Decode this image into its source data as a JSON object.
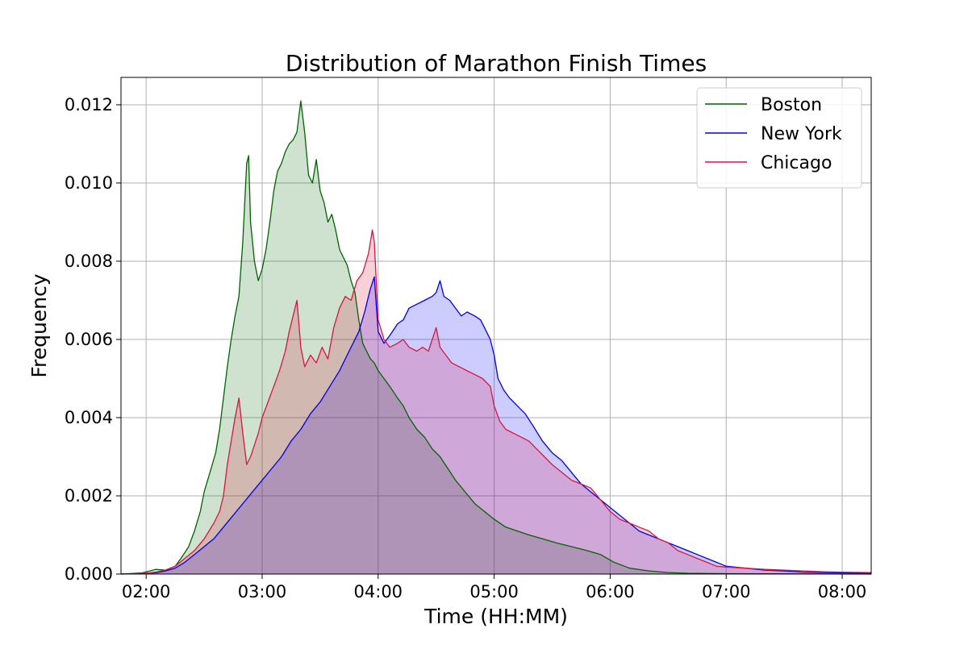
{
  "chart_data": {
    "type": "area",
    "title": "Distribution of Marathon Finish Times",
    "xlabel": "Time (HH:MM)",
    "ylabel": "Frequency",
    "x_unit": "minutes",
    "xlim": [
      107,
      495
    ],
    "ylim": [
      0,
      0.0127
    ],
    "x_ticks": [
      {
        "value": 120,
        "label": "02:00"
      },
      {
        "value": 180,
        "label": "03:00"
      },
      {
        "value": 240,
        "label": "04:00"
      },
      {
        "value": 300,
        "label": "05:00"
      },
      {
        "value": 360,
        "label": "06:00"
      },
      {
        "value": 420,
        "label": "07:00"
      },
      {
        "value": 480,
        "label": "08:00"
      }
    ],
    "y_ticks": [
      {
        "value": 0,
        "label": "0.000"
      },
      {
        "value": 0.002,
        "label": "0.002"
      },
      {
        "value": 0.004,
        "label": "0.004"
      },
      {
        "value": 0.006,
        "label": "0.006"
      },
      {
        "value": 0.008,
        "label": "0.008"
      },
      {
        "value": 0.01,
        "label": "0.010"
      },
      {
        "value": 0.012,
        "label": "0.012"
      }
    ],
    "grid": true,
    "legend_position": "top-right",
    "series": [
      {
        "name": "Boston",
        "color": "#006400",
        "fill": "#006400",
        "fill_opacity": 0.19,
        "points": [
          [
            107,
            0
          ],
          [
            118,
            3e-05
          ],
          [
            125,
            0.00012
          ],
          [
            130,
            0.0001
          ],
          [
            135,
            0.0002
          ],
          [
            138,
            0.0004
          ],
          [
            142,
            0.0007
          ],
          [
            145,
            0.0011
          ],
          [
            148,
            0.0016
          ],
          [
            150,
            0.0021
          ],
          [
            153,
            0.0026
          ],
          [
            156,
            0.0031
          ],
          [
            158,
            0.0037
          ],
          [
            160,
            0.0045
          ],
          [
            162,
            0.0053
          ],
          [
            164,
            0.006
          ],
          [
            166,
            0.0066
          ],
          [
            168,
            0.0071
          ],
          [
            170,
            0.0085
          ],
          [
            172,
            0.0105
          ],
          [
            173,
            0.0107
          ],
          [
            174,
            0.009
          ],
          [
            176,
            0.008
          ],
          [
            178,
            0.0075
          ],
          [
            180,
            0.0078
          ],
          [
            182,
            0.0083
          ],
          [
            184,
            0.009
          ],
          [
            186,
            0.0098
          ],
          [
            188,
            0.0103
          ],
          [
            190,
            0.0105
          ],
          [
            192,
            0.0108
          ],
          [
            194,
            0.011
          ],
          [
            196,
            0.0111
          ],
          [
            198,
            0.0113
          ],
          [
            200,
            0.0121
          ],
          [
            202,
            0.0113
          ],
          [
            204,
            0.0102
          ],
          [
            206,
            0.01
          ],
          [
            208,
            0.0106
          ],
          [
            210,
            0.0098
          ],
          [
            212,
            0.0095
          ],
          [
            214,
            0.009
          ],
          [
            216,
            0.0092
          ],
          [
            218,
            0.0088
          ],
          [
            220,
            0.0083
          ],
          [
            222,
            0.0081
          ],
          [
            224,
            0.0079
          ],
          [
            226,
            0.0075
          ],
          [
            228,
            0.0072
          ],
          [
            230,
            0.0065
          ],
          [
            232,
            0.0059
          ],
          [
            234,
            0.0057
          ],
          [
            236,
            0.0055
          ],
          [
            238,
            0.0054
          ],
          [
            240,
            0.0052
          ],
          [
            243,
            0.005
          ],
          [
            246,
            0.0048
          ],
          [
            250,
            0.0045
          ],
          [
            253,
            0.0043
          ],
          [
            256,
            0.004
          ],
          [
            260,
            0.0037
          ],
          [
            264,
            0.0035
          ],
          [
            268,
            0.0032
          ],
          [
            272,
            0.003
          ],
          [
            276,
            0.0027
          ],
          [
            280,
            0.0024
          ],
          [
            285,
            0.0021
          ],
          [
            290,
            0.0018
          ],
          [
            295,
            0.0016
          ],
          [
            300,
            0.0014
          ],
          [
            306,
            0.0012
          ],
          [
            312,
            0.0011
          ],
          [
            318,
            0.001
          ],
          [
            325,
            0.0009
          ],
          [
            332,
            0.0008
          ],
          [
            340,
            0.0007
          ],
          [
            348,
            0.0006
          ],
          [
            355,
            0.0005
          ],
          [
            362,
            0.0003
          ],
          [
            370,
            0.00015
          ],
          [
            380,
            8e-05
          ],
          [
            390,
            4e-05
          ],
          [
            400,
            2e-05
          ],
          [
            420,
            1e-05
          ],
          [
            495,
            0
          ]
        ]
      },
      {
        "name": "New York",
        "color": "#0000ee",
        "fill": "#0000ff",
        "fill_opacity": 0.2,
        "points": [
          [
            107,
            0
          ],
          [
            125,
            3e-05
          ],
          [
            130,
            8e-05
          ],
          [
            135,
            0.00015
          ],
          [
            140,
            0.0003
          ],
          [
            145,
            0.0005
          ],
          [
            150,
            0.0007
          ],
          [
            155,
            0.0009
          ],
          [
            160,
            0.0012
          ],
          [
            165,
            0.0015
          ],
          [
            170,
            0.0018
          ],
          [
            175,
            0.0021
          ],
          [
            180,
            0.0024
          ],
          [
            185,
            0.0027
          ],
          [
            190,
            0.003
          ],
          [
            195,
            0.0034
          ],
          [
            200,
            0.0037
          ],
          [
            205,
            0.0041
          ],
          [
            210,
            0.0044
          ],
          [
            215,
            0.0048
          ],
          [
            220,
            0.0052
          ],
          [
            225,
            0.0057
          ],
          [
            230,
            0.0062
          ],
          [
            233,
            0.0067
          ],
          [
            236,
            0.0073
          ],
          [
            238,
            0.0076
          ],
          [
            240,
            0.0062
          ],
          [
            243,
            0.0059
          ],
          [
            246,
            0.0061
          ],
          [
            250,
            0.0064
          ],
          [
            253,
            0.0065
          ],
          [
            256,
            0.0068
          ],
          [
            260,
            0.0069
          ],
          [
            264,
            0.007
          ],
          [
            268,
            0.0071
          ],
          [
            270,
            0.0072
          ],
          [
            272,
            0.0075
          ],
          [
            274,
            0.0071
          ],
          [
            277,
            0.007
          ],
          [
            280,
            0.0068
          ],
          [
            283,
            0.0066
          ],
          [
            286,
            0.0067
          ],
          [
            290,
            0.0066
          ],
          [
            293,
            0.0065
          ],
          [
            296,
            0.0062
          ],
          [
            298,
            0.006
          ],
          [
            300,
            0.0056
          ],
          [
            302,
            0.005
          ],
          [
            305,
            0.0047
          ],
          [
            308,
            0.0045
          ],
          [
            312,
            0.0043
          ],
          [
            316,
            0.0041
          ],
          [
            320,
            0.0038
          ],
          [
            325,
            0.0034
          ],
          [
            330,
            0.0031
          ],
          [
            335,
            0.0029
          ],
          [
            340,
            0.0026
          ],
          [
            345,
            0.0023
          ],
          [
            350,
            0.0021
          ],
          [
            355,
            0.0019
          ],
          [
            360,
            0.0017
          ],
          [
            365,
            0.0015
          ],
          [
            370,
            0.0013
          ],
          [
            375,
            0.0011
          ],
          [
            380,
            0.001
          ],
          [
            385,
            0.0009
          ],
          [
            390,
            0.0008
          ],
          [
            395,
            0.0007
          ],
          [
            400,
            0.0006
          ],
          [
            405,
            0.0005
          ],
          [
            410,
            0.0004
          ],
          [
            415,
            0.0003
          ],
          [
            420,
            0.0002
          ],
          [
            430,
            0.00015
          ],
          [
            440,
            0.0001
          ],
          [
            450,
            8e-05
          ],
          [
            460,
            5e-05
          ],
          [
            470,
            4e-05
          ],
          [
            480,
            3e-05
          ],
          [
            495,
            2e-05
          ]
        ]
      },
      {
        "name": "Chicago",
        "color": "#dc143c",
        "fill": "#dc143c",
        "fill_opacity": 0.2,
        "points": [
          [
            107,
            0
          ],
          [
            120,
            2e-05
          ],
          [
            125,
            5e-05
          ],
          [
            130,
            0.0001
          ],
          [
            135,
            0.0002
          ],
          [
            140,
            0.0004
          ],
          [
            145,
            0.0006
          ],
          [
            150,
            0.0009
          ],
          [
            155,
            0.0013
          ],
          [
            158,
            0.0016
          ],
          [
            160,
            0.002
          ],
          [
            162,
            0.0028
          ],
          [
            164,
            0.0034
          ],
          [
            166,
            0.004
          ],
          [
            168,
            0.0045
          ],
          [
            170,
            0.0036
          ],
          [
            172,
            0.0028
          ],
          [
            174,
            0.003
          ],
          [
            176,
            0.0033
          ],
          [
            178,
            0.0036
          ],
          [
            180,
            0.004
          ],
          [
            183,
            0.0044
          ],
          [
            186,
            0.0048
          ],
          [
            189,
            0.0052
          ],
          [
            192,
            0.0057
          ],
          [
            194,
            0.0062
          ],
          [
            196,
            0.0066
          ],
          [
            198,
            0.007
          ],
          [
            200,
            0.0058
          ],
          [
            202,
            0.0053
          ],
          [
            205,
            0.0056
          ],
          [
            208,
            0.0054
          ],
          [
            211,
            0.0058
          ],
          [
            214,
            0.0055
          ],
          [
            217,
            0.0063
          ],
          [
            220,
            0.0068
          ],
          [
            223,
            0.0071
          ],
          [
            226,
            0.007
          ],
          [
            229,
            0.0075
          ],
          [
            232,
            0.0077
          ],
          [
            235,
            0.0082
          ],
          [
            237,
            0.0088
          ],
          [
            238,
            0.0085
          ],
          [
            240,
            0.0065
          ],
          [
            243,
            0.006
          ],
          [
            246,
            0.0058
          ],
          [
            250,
            0.0059
          ],
          [
            253,
            0.006
          ],
          [
            256,
            0.0058
          ],
          [
            260,
            0.0057
          ],
          [
            263,
            0.0058
          ],
          [
            266,
            0.0057
          ],
          [
            268,
            0.006
          ],
          [
            270,
            0.0063
          ],
          [
            272,
            0.0058
          ],
          [
            275,
            0.0056
          ],
          [
            278,
            0.0054
          ],
          [
            282,
            0.0053
          ],
          [
            286,
            0.0052
          ],
          [
            290,
            0.0051
          ],
          [
            294,
            0.005
          ],
          [
            298,
            0.0048
          ],
          [
            300,
            0.0043
          ],
          [
            303,
            0.0039
          ],
          [
            306,
            0.0037
          ],
          [
            310,
            0.0036
          ],
          [
            314,
            0.0035
          ],
          [
            318,
            0.0034
          ],
          [
            322,
            0.0032
          ],
          [
            326,
            0.003
          ],
          [
            330,
            0.0028
          ],
          [
            335,
            0.0026
          ],
          [
            340,
            0.0024
          ],
          [
            345,
            0.0023
          ],
          [
            350,
            0.0022
          ],
          [
            355,
            0.0019
          ],
          [
            360,
            0.0016
          ],
          [
            365,
            0.0014
          ],
          [
            370,
            0.0013
          ],
          [
            375,
            0.0012
          ],
          [
            380,
            0.0011
          ],
          [
            385,
            0.0009
          ],
          [
            390,
            0.0008
          ],
          [
            395,
            0.0006
          ],
          [
            400,
            0.0005
          ],
          [
            405,
            0.0004
          ],
          [
            410,
            0.0003
          ],
          [
            415,
            0.0002
          ],
          [
            420,
            0.00018
          ],
          [
            430,
            0.00015
          ],
          [
            440,
            0.00012
          ],
          [
            450,
            0.0001
          ],
          [
            460,
            8e-05
          ],
          [
            470,
            6e-05
          ],
          [
            480,
            5e-05
          ],
          [
            495,
            4e-05
          ]
        ]
      }
    ]
  }
}
